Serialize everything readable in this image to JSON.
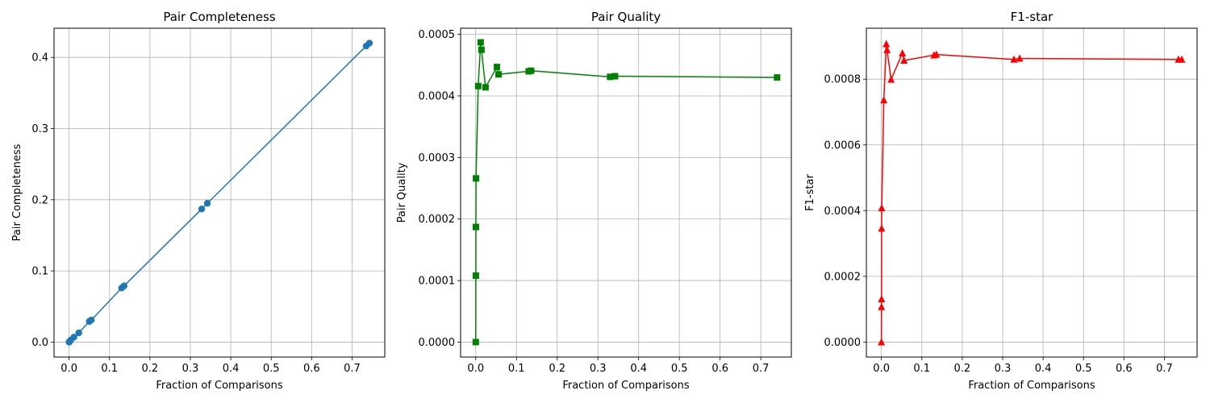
{
  "chart_data": [
    {
      "type": "line",
      "title": "Pair Completeness",
      "xlabel": "Fraction of Comparisons",
      "ylabel": "Pair Completeness",
      "xlim": [
        -0.0372,
        0.781
      ],
      "ylim": [
        -0.021,
        0.441
      ],
      "xticks": [
        "0.0",
        "0.1",
        "0.2",
        "0.3",
        "0.4",
        "0.5",
        "0.6",
        "0.7"
      ],
      "xtick_values": [
        0,
        0.1,
        0.2,
        0.3,
        0.4,
        0.5,
        0.6,
        0.7
      ],
      "yticks": [
        "0.0",
        "0.1",
        "0.2",
        "0.3",
        "0.4"
      ],
      "ytick_values": [
        0,
        0.1,
        0.2,
        0.3,
        0.4
      ],
      "grid": true,
      "series": [
        {
          "color": "#1f77b4",
          "marker": "circle",
          "x": [
            0.0,
            0.0002,
            0.0004,
            0.0006,
            0.0008,
            0.0015,
            0.004,
            0.012,
            0.024,
            0.05,
            0.055,
            0.13,
            0.136,
            0.328,
            0.342,
            0.735,
            0.743
          ],
          "y": [
            0.0,
            0.0001,
            0.0002,
            0.0003,
            0.0004,
            0.001,
            0.003,
            0.007,
            0.013,
            0.029,
            0.031,
            0.076,
            0.079,
            0.187,
            0.195,
            0.416,
            0.42
          ]
        }
      ]
    },
    {
      "type": "line",
      "title": "Pair Quality",
      "xlabel": "Fraction of Comparisons",
      "ylabel": "Pair Quality",
      "xlim": [
        -0.0372,
        0.775
      ],
      "ylim": [
        -2.43e-05,
        0.00051
      ],
      "xticks": [
        "0.0",
        "0.1",
        "0.2",
        "0.3",
        "0.4",
        "0.5",
        "0.6",
        "0.7"
      ],
      "xtick_values": [
        0,
        0.1,
        0.2,
        0.3,
        0.4,
        0.5,
        0.6,
        0.7
      ],
      "yticks": [
        "0.0000",
        "0.0001",
        "0.0002",
        "0.0003",
        "0.0004",
        "0.0005"
      ],
      "ytick_values": [
        0,
        0.0001,
        0.0002,
        0.0003,
        0.0004,
        0.0005
      ],
      "grid": true,
      "series": [
        {
          "color": "#008000",
          "marker": "square",
          "x": [
            0.0,
            0.0002,
            0.0004,
            0.0006,
            0.006,
            0.012,
            0.014,
            0.024,
            0.052,
            0.056,
            0.13,
            0.136,
            0.33,
            0.342,
            0.74
          ],
          "y": [
            0.0,
            0.000108,
            0.000187,
            0.000266,
            0.000416,
            0.000487,
            0.000475,
            0.000414,
            0.000447,
            0.000435,
            0.00044,
            0.000441,
            0.000431,
            0.000432,
            0.00043
          ]
        }
      ]
    },
    {
      "type": "line",
      "title": "F1-star",
      "xlabel": "Fraction of Comparisons",
      "ylabel": "F1-star",
      "xlim": [
        -0.0372,
        0.781
      ],
      "ylim": [
        -4.55e-05,
        0.000955
      ],
      "xticks": [
        "0.0",
        "0.1",
        "0.2",
        "0.3",
        "0.4",
        "0.5",
        "0.6",
        "0.7"
      ],
      "xtick_values": [
        0,
        0.1,
        0.2,
        0.3,
        0.4,
        0.5,
        0.6,
        0.7
      ],
      "yticks": [
        "0.0000",
        "0.0002",
        "0.0004",
        "0.0006",
        "0.0008"
      ],
      "ytick_values": [
        0,
        0.0002,
        0.0004,
        0.0006,
        0.0008
      ],
      "grid": true,
      "series": [
        {
          "color": "#ff0000",
          "marker": "triangle",
          "x": [
            0.0,
            0.0002,
            0.0004,
            0.0006,
            0.0008,
            0.006,
            0.012,
            0.014,
            0.024,
            0.052,
            0.056,
            0.13,
            0.136,
            0.328,
            0.342,
            0.735,
            0.743
          ],
          "y": [
            0.0,
            0.000107,
            0.000131,
            0.000346,
            0.000408,
            0.000736,
            0.000907,
            0.000889,
            0.000799,
            0.000879,
            0.000857,
            0.000873,
            0.000875,
            0.00086,
            0.000863,
            0.00086,
            0.00086
          ]
        }
      ]
    }
  ]
}
